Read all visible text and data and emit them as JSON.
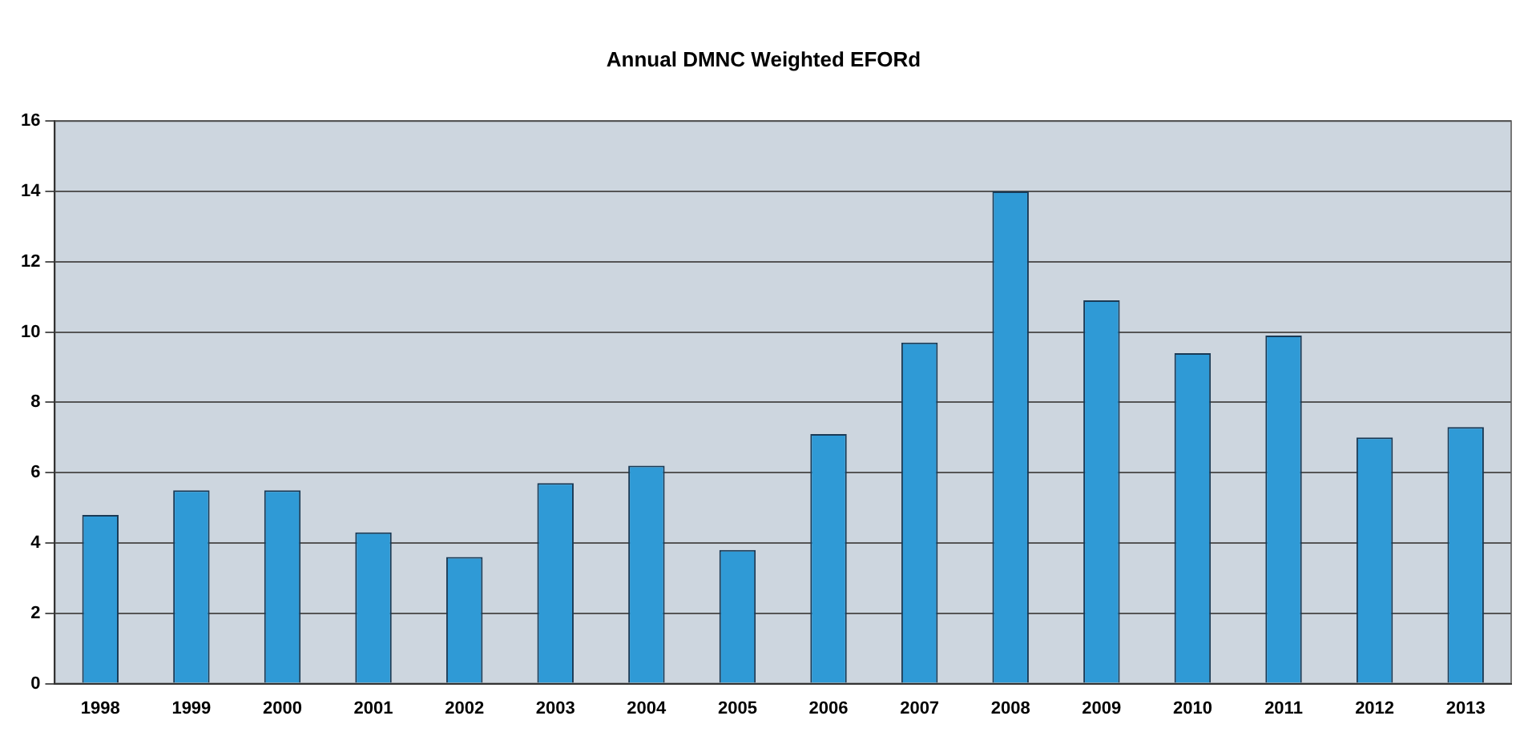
{
  "chart_data": {
    "type": "bar",
    "title": "Annual DMNC Weighted EFORd",
    "categories": [
      "1998",
      "1999",
      "2000",
      "2001",
      "2002",
      "2003",
      "2004",
      "2005",
      "2006",
      "2007",
      "2008",
      "2009",
      "2010",
      "2011",
      "2012",
      "2013"
    ],
    "values": [
      4.8,
      5.5,
      5.5,
      4.3,
      3.6,
      5.7,
      6.2,
      3.8,
      7.1,
      9.7,
      14.0,
      10.9,
      9.4,
      9.9,
      7.0,
      7.3
    ],
    "color": "#2f9ad6",
    "ylim": [
      0,
      16
    ],
    "yticks": [
      0,
      2,
      4,
      6,
      8,
      10,
      12,
      14,
      16
    ],
    "grid": "y",
    "legend": false
  }
}
